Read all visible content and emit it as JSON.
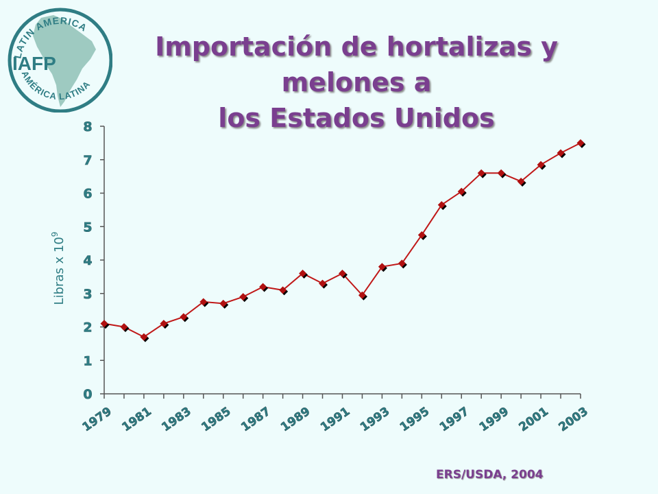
{
  "slide": {
    "title_line1": "Importación de hortalizas y melones a",
    "title_line2": "los Estados Unidos",
    "source": "ERS/USDA, 2004"
  },
  "logo": {
    "acronym": "IAFP",
    "text_top": "LATIN AMERICA",
    "text_bottom": "AMÉRICA LATINA",
    "colors": {
      "ring": "#2f7d84",
      "continent": "#8fc1b6",
      "text": "#2f7d84"
    }
  },
  "colors": {
    "title": "#7a3f8f",
    "axis_text": "#2f7d84",
    "line": "#c01818",
    "marker": "#b01010",
    "marker_shadow": "#000000",
    "axis_line": "#555555"
  },
  "chart_data": {
    "type": "line",
    "title": "",
    "xlabel": "",
    "ylabel": "Libras x 10",
    "ylabel_sup": "9",
    "x": [
      1979,
      1980,
      1981,
      1982,
      1983,
      1984,
      1985,
      1986,
      1987,
      1988,
      1989,
      1990,
      1991,
      1992,
      1993,
      1994,
      1995,
      1996,
      1997,
      1998,
      1999,
      2000,
      2001,
      2002,
      2003
    ],
    "series": [
      {
        "values": [
          2.1,
          2.0,
          1.7,
          2.1,
          2.3,
          2.75,
          2.7,
          2.9,
          3.2,
          3.1,
          3.6,
          3.3,
          3.6,
          2.95,
          3.8,
          3.9,
          4.75,
          5.65,
          6.05,
          6.6,
          6.6,
          6.35,
          6.85,
          7.2,
          7.5
        ]
      }
    ],
    "x_tick_labels": [
      "1979",
      "1981",
      "1983",
      "1985",
      "1987",
      "1989",
      "1991",
      "1993",
      "1995",
      "1997",
      "1999",
      "2001",
      "2003"
    ],
    "y_ticks": [
      0,
      1,
      2,
      3,
      4,
      5,
      6,
      7,
      8
    ],
    "ylim": [
      0,
      8
    ],
    "grid": false,
    "marker": "diamond"
  }
}
